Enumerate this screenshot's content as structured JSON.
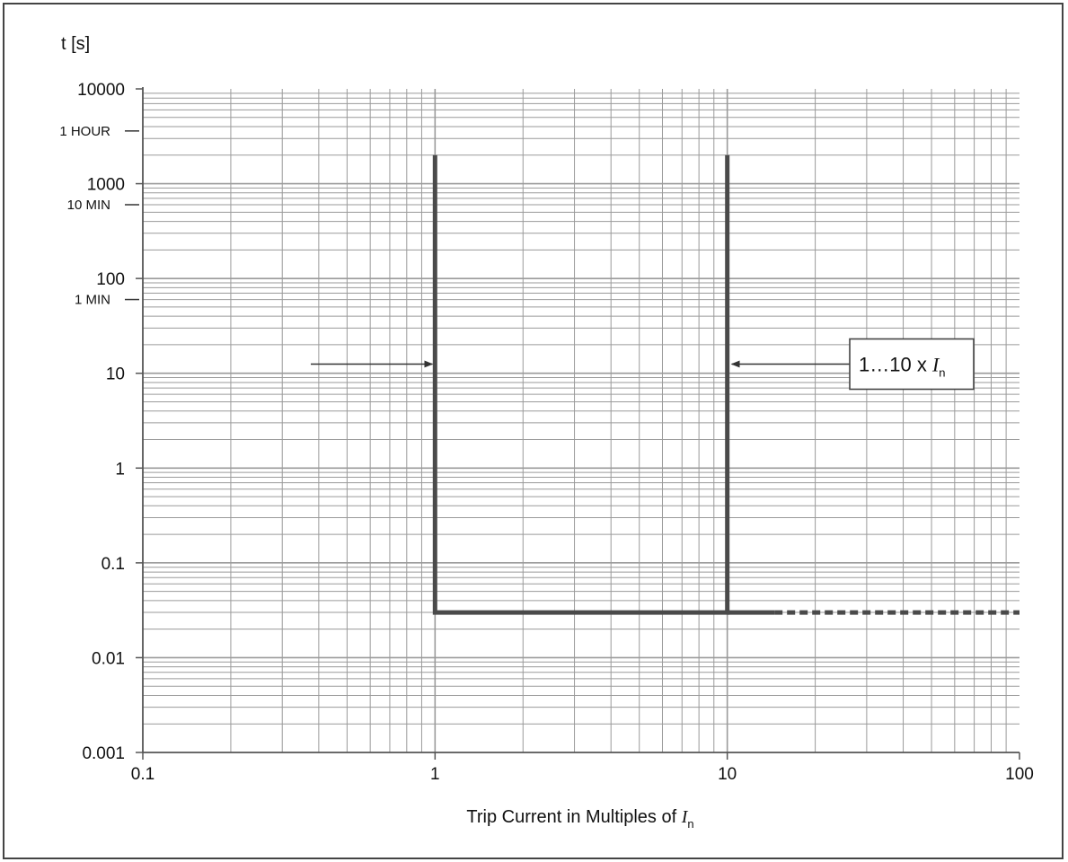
{
  "chart_data": {
    "type": "line",
    "title": "",
    "xlabel": "Trip Current in Multiples of ",
    "xlabel_symbol": "I",
    "xlabel_subscript": "n",
    "ylabel": "t [s]",
    "x_scale": "log",
    "y_scale": "log",
    "xlim": [
      0.1,
      100
    ],
    "ylim": [
      0.001,
      10000
    ],
    "grid": true,
    "x_ticks": [
      {
        "value": 0.1,
        "label": "0.1"
      },
      {
        "value": 1,
        "label": "1"
      },
      {
        "value": 10,
        "label": "10"
      },
      {
        "value": 100,
        "label": "100"
      }
    ],
    "y_ticks": [
      {
        "value": 10000,
        "label": "10000"
      },
      {
        "value": 1000,
        "label": "1000"
      },
      {
        "value": 100,
        "label": "100"
      },
      {
        "value": 10,
        "label": "10"
      },
      {
        "value": 1,
        "label": "1"
      },
      {
        "value": 0.1,
        "label": "0.1"
      },
      {
        "value": 0.01,
        "label": "0.01"
      },
      {
        "value": 0.001,
        "label": "0.001"
      }
    ],
    "time_markers": [
      {
        "value": 3600,
        "label": "1 HOUR"
      },
      {
        "value": 600,
        "label": "10 MIN"
      },
      {
        "value": 60,
        "label": "1 MIN"
      }
    ],
    "series": [
      {
        "style": "solid",
        "x": [
          1,
          1,
          10,
          10
        ],
        "y": [
          2000,
          0.03,
          0.03,
          2000
        ]
      },
      {
        "style": "solid",
        "x": [
          10,
          14.5
        ],
        "y": [
          0.03,
          0.03
        ]
      },
      {
        "style": "dashed",
        "x": [
          14.5,
          100
        ],
        "y": [
          0.03,
          0.03
        ]
      }
    ],
    "annotation": {
      "text": "1…10 x ",
      "symbol": "I",
      "subscript": "n",
      "targets_x": [
        1,
        10
      ],
      "y": 12.5
    },
    "colors": {
      "curve": "#4a4a4a",
      "grid": "#9a9a9a",
      "frame": "#444444"
    }
  }
}
